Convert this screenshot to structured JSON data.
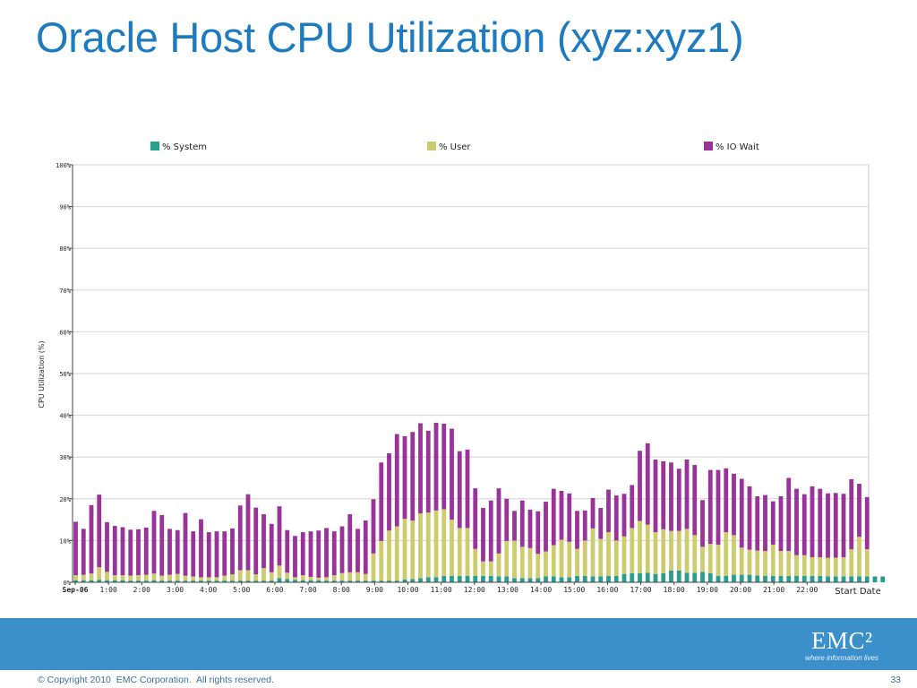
{
  "slide": {
    "title": "Oracle Host CPU Utilization (xyz:xyz1)",
    "copyright": "© Copyright 2010  EMC Corporation.  All rights reserved.",
    "page_number": "33"
  },
  "logo": {
    "name": "EMC²",
    "tagline": "where information lives"
  },
  "colors": {
    "title": "#1f7bbf",
    "footer_band": "#3b8fcb",
    "system": "#2a9d8f",
    "user": "#cccc6e",
    "io_wait": "#993399"
  },
  "chart_data": {
    "type": "bar",
    "stacked": true,
    "ylabel": "CPU Utilization (%)",
    "xlabel": "Start Date",
    "ylim": [
      0,
      100
    ],
    "y_ticks": [
      "0%",
      "10%",
      "20%",
      "30%",
      "40%",
      "50%",
      "60%",
      "70%",
      "80%",
      "90%",
      "100%"
    ],
    "x_tick_labels": [
      "Sep-06",
      "1:00",
      "2:00",
      "3:00",
      "4:00",
      "5:00",
      "6:00",
      "7:00",
      "8:00",
      "9:00",
      "10:00",
      "11:00",
      "12:00",
      "13:00",
      "14:00",
      "15:00",
      "16:00",
      "17:00",
      "18:00",
      "19:00",
      "20:00",
      "21:00",
      "22:00"
    ],
    "grid": true,
    "legend_position": "top",
    "series": [
      {
        "name": "% System",
        "color": "#2a9d8f",
        "values": [
          0.5,
          0.5,
          0.5,
          0.6,
          0.5,
          0.5,
          0.5,
          0.4,
          0.4,
          0.4,
          0.5,
          0.4,
          0.4,
          0.4,
          0.4,
          0.4,
          0.4,
          0.4,
          0.4,
          0.4,
          0.4,
          0.4,
          0.4,
          0.4,
          0.4,
          0.4,
          1.0,
          0.8,
          0.6,
          0.5,
          0.5,
          0.5,
          0.4,
          0.4,
          0.4,
          0.4,
          0.4,
          0.4,
          0.4,
          0.4,
          0.4,
          0.4,
          0.7,
          0.8,
          1.0,
          1.2,
          1.2,
          1.5,
          1.5,
          1.5,
          1.5,
          1.5,
          1.5,
          1.5,
          1.4,
          1.4,
          1.0,
          1.0,
          1.0,
          1.0,
          1.4,
          1.4,
          1.2,
          1.2,
          1.5,
          1.5,
          1.4,
          1.4,
          1.5,
          1.5,
          2.0,
          2.2,
          2.2,
          2.3,
          2.0,
          2.2,
          2.8,
          2.8,
          2.3,
          2.3,
          2.5,
          2.2,
          1.5,
          1.5,
          1.8,
          1.8,
          1.8,
          1.6,
          1.5,
          1.5,
          1.5,
          1.5,
          1.5,
          1.5,
          1.5,
          1.5,
          1.4,
          1.4,
          1.4,
          1.4,
          1.4,
          1.4,
          1.4,
          1.4
        ]
      },
      {
        "name": "% User",
        "color": "#cccc6e",
        "values": [
          1.2,
          1.3,
          1.6,
          3.0,
          2.0,
          1.2,
          1.2,
          1.2,
          1.3,
          1.4,
          1.6,
          1.2,
          1.4,
          1.6,
          1.2,
          1.0,
          0.8,
          0.8,
          0.8,
          1.2,
          1.5,
          2.5,
          2.5,
          1.5,
          3.0,
          2.0,
          3.0,
          1.5,
          0.6,
          1.2,
          0.8,
          0.6,
          0.8,
          1.3,
          1.8,
          2.0,
          2.0,
          1.6,
          6.5,
          9.5,
          12.0,
          13.0,
          14.5,
          14.0,
          15.5,
          15.5,
          16.0,
          16.0,
          13.5,
          11.5,
          11.5,
          6.5,
          3.5,
          3.5,
          5.5,
          8.5,
          9.0,
          7.5,
          7.2,
          5.8,
          6.0,
          7.5,
          9.0,
          8.5,
          6.5,
          8.5,
          11.5,
          9.0,
          10.5,
          8.5,
          9.0,
          10.8,
          12.5,
          11.5,
          10.0,
          10.5,
          9.5,
          9.5,
          10.5,
          9.0,
          6.0,
          7.0,
          7.5,
          10.5,
          9.5,
          6.5,
          6.0,
          6.0,
          6.0,
          7.5,
          6.0,
          6.0,
          5.0,
          5.0,
          4.5,
          4.5,
          4.5,
          4.5,
          4.6,
          6.5,
          9.5,
          6.5
        ]
      },
      {
        "name": "% IO Wait",
        "color": "#993399",
        "values": [
          12.8,
          11.0,
          16.4,
          17.4,
          11.9,
          11.8,
          11.5,
          11.0,
          11.0,
          11.3,
          15.0,
          14.5,
          11.0,
          10.5,
          15.0,
          10.8,
          13.9,
          10.8,
          11.0,
          10.6,
          11.0,
          15.5,
          18.2,
          16.0,
          12.9,
          11.6,
          14.2,
          10.2,
          9.9,
          10.3,
          10.9,
          11.3,
          11.8,
          10.5,
          11.2,
          13.9,
          10.4,
          12.8,
          13.0,
          18.8,
          18.5,
          22.1,
          19.8,
          21.2,
          21.6,
          19.6,
          21.0,
          20.5,
          21.8,
          18.4,
          18.8,
          14.5,
          12.8,
          14.6,
          15.6,
          10.1,
          7.1,
          11.1,
          9.2,
          10.2,
          11.9,
          13.5,
          11.7,
          11.6,
          9.1,
          7.2,
          7.3,
          7.4,
          10.2,
          10.8,
          10.2,
          10.3,
          16.8,
          19.5,
          17.4,
          16.3,
          16.4,
          14.9,
          16.6,
          16.8,
          11.2,
          17.7,
          17.9,
          15.3,
          14.7,
          16.5,
          15.2,
          13.0,
          13.4,
          10.4,
          13.1,
          17.5,
          15.9,
          14.6,
          17.0,
          16.4,
          15.4,
          15.5,
          15.2,
          16.8,
          12.7,
          12.5
        ]
      }
    ]
  }
}
